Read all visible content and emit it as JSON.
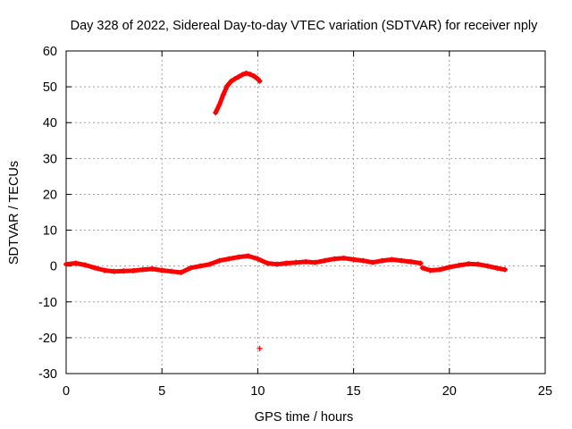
{
  "chart_data": {
    "type": "scatter",
    "title": "Day 328 of 2022, Sidereal Day-to-day VTEC variation (SDTVAR) for receiver nply",
    "xlabel": "GPS time / hours",
    "ylabel": "SDTVAR / TECUs",
    "xlim": [
      0,
      25
    ],
    "ylim": [
      -30,
      60
    ],
    "xticks": [
      0,
      5,
      10,
      15,
      20,
      25
    ],
    "yticks": [
      -30,
      -20,
      -10,
      0,
      10,
      20,
      30,
      40,
      50,
      60
    ],
    "grid": true,
    "marker": "+",
    "series": [
      {
        "name": "SDTVAR",
        "color": "#ff0000",
        "segments": [
          {
            "x": [
              0.0,
              0.5,
              1.0,
              1.5,
              2.0,
              2.5,
              3.0,
              3.5,
              4.0,
              4.5,
              5.0,
              5.5,
              6.0,
              6.5,
              7.0,
              7.5,
              8.0,
              8.5,
              9.0,
              9.5,
              10.0,
              10.5,
              11.0,
              11.5,
              12.0,
              12.5,
              13.0,
              13.5,
              14.0,
              14.5,
              15.0,
              15.5,
              16.0,
              16.5,
              17.0,
              17.5,
              18.0,
              18.5
            ],
            "y": [
              0.5,
              0.8,
              0.3,
              -0.5,
              -1.2,
              -1.5,
              -1.4,
              -1.3,
              -1.0,
              -0.8,
              -1.2,
              -1.5,
              -1.8,
              -0.5,
              0.0,
              0.5,
              1.5,
              2.0,
              2.5,
              2.8,
              2.0,
              0.8,
              0.5,
              0.8,
              1.0,
              1.2,
              1.0,
              1.5,
              2.0,
              2.2,
              1.8,
              1.5,
              1.0,
              1.5,
              1.8,
              1.5,
              1.2,
              0.8
            ]
          },
          {
            "x": [
              18.6,
              19.0,
              19.5,
              20.0,
              20.5,
              21.0,
              21.5,
              22.0,
              22.5,
              22.9
            ],
            "y": [
              -0.5,
              -1.2,
              -1.0,
              -0.3,
              0.2,
              0.6,
              0.5,
              0.0,
              -0.6,
              -1.0
            ]
          },
          {
            "x": [
              7.8,
              8.0,
              8.2,
              8.4,
              8.6,
              8.8,
              9.0,
              9.2,
              9.4,
              9.6,
              9.8,
              10.0,
              10.1
            ],
            "y": [
              42.8,
              45.0,
              47.8,
              50.2,
              51.5,
              52.2,
              52.8,
              53.4,
              53.8,
              53.5,
              53.0,
              52.2,
              51.6
            ]
          },
          {
            "x": [
              10.1
            ],
            "y": [
              -23.0
            ]
          }
        ]
      }
    ]
  }
}
